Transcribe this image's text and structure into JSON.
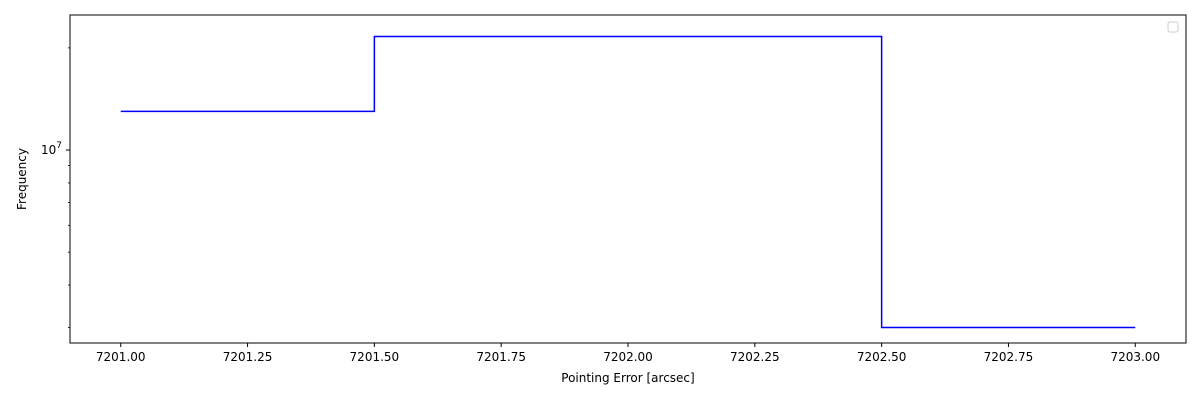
{
  "chart_data": {
    "type": "line",
    "drawstyle": "steps-post",
    "xlabel": "Pointing Error [arcsec]",
    "ylabel": "Frequency",
    "x_ticks": [
      "7201.00",
      "7201.25",
      "7201.50",
      "7201.75",
      "7202.00",
      "7202.25",
      "7202.50",
      "7202.75",
      "7203.00"
    ],
    "x_tick_values": [
      7201.0,
      7201.25,
      7201.5,
      7201.75,
      7202.0,
      7202.25,
      7202.5,
      7202.75,
      7203.0
    ],
    "y_scale": "log",
    "y_major_tick": {
      "base": "10",
      "exponent": "7",
      "value": 10000000
    },
    "y_minor_ticks": [
      3000000,
      4000000,
      5000000,
      6000000,
      7000000,
      8000000,
      9000000,
      20000000
    ],
    "xlim": [
      7200.9,
      7203.1
    ],
    "ylim": [
      2700000,
      25000000
    ],
    "series": [
      {
        "color": "#0000ff",
        "x": [
          7201.0,
          7201.5,
          7202.5,
          7203.0
        ],
        "values": [
          13000000,
          21600000,
          3000000,
          3000000
        ]
      }
    ],
    "legend": {
      "placement": "top-right",
      "entries": []
    },
    "grid": false
  }
}
